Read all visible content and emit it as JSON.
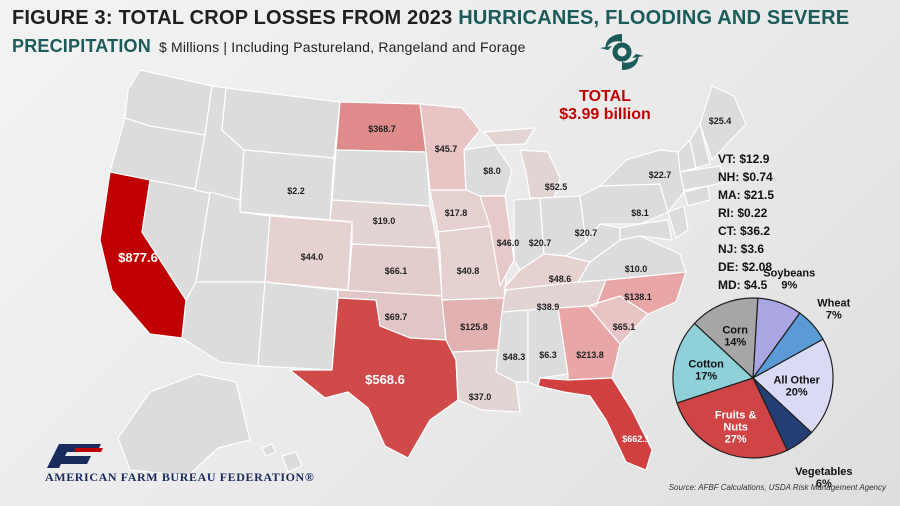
{
  "title": {
    "prefix": "FIGURE 3: TOTAL CROP LOSSES FROM 2023 ",
    "highlight1": "HURRICANES, FLOODING AND SEVERE",
    "highlight2": "PRECIPITATION",
    "subtitle": "$ Millions | Including Pastureland, Rangeland and Forage"
  },
  "total": {
    "label": "TOTAL",
    "value": "$3.99 billion"
  },
  "state_labels": {
    "CA": "$877.6",
    "TX": "$568.6",
    "FL": "$662.1",
    "ND": "$368.7",
    "GA": "$213.8",
    "NC": "$138.1",
    "AR": "$125.8",
    "OK": "$69.7",
    "KS": "$66.1",
    "SC": "$65.1",
    "KY": "$48.6",
    "AL": "$6.3",
    "MS": "$48.3",
    "MO": "$40.8",
    "IL": "$46.0",
    "CO": "$44.0",
    "MN": "$45.7",
    "TN": "$38.9",
    "LA": "$37.0",
    "NY": "$22.7",
    "OH": "$20.7",
    "IN": "$20.7",
    "NE": "$19.0",
    "IA": "$17.8",
    "MI": "$52.5",
    "WI": "$8.0",
    "PA": "$8.1",
    "VA": "$10.0",
    "WY": "$2.2",
    "ME": "$25.4"
  },
  "northeast_list": [
    "VT: $12.9",
    "NH: $0.74",
    "MA: $21.5",
    "RI: $0.22",
    "CT: $36.2",
    "NJ: $3.6",
    "DE: $2.08",
    "MD: $4.5"
  ],
  "colors": {
    "highest": "#c00000",
    "high": "#d04a4a",
    "mid": "#e08b8b",
    "low": "#e8c4c4",
    "lowest": "#ddd0d0",
    "none": "#dcdcdc",
    "teal": "#1b5b5a"
  },
  "chart_data": {
    "type": "pie",
    "categories": [
      "Soybeans",
      "Wheat",
      "All Other",
      "Vegetables",
      "Fruits & Nuts",
      "Cotton",
      "Corn"
    ],
    "values": [
      9,
      7,
      20,
      6,
      27,
      17,
      14
    ],
    "value_labels": [
      "9%",
      "7%",
      "20%",
      "6%",
      "27%",
      "17%",
      "14%"
    ],
    "colors": [
      "#a9a6e3",
      "#5b9bd5",
      "#dadaf5",
      "#243f73",
      "#cf4444",
      "#8fd0d9",
      "#a6a6a6"
    ]
  },
  "source": "Source: AFBF Calculations, USDA Risk Management Agency",
  "logo": {
    "text": "AMERICAN FARM BUREAU FEDERATION®"
  }
}
